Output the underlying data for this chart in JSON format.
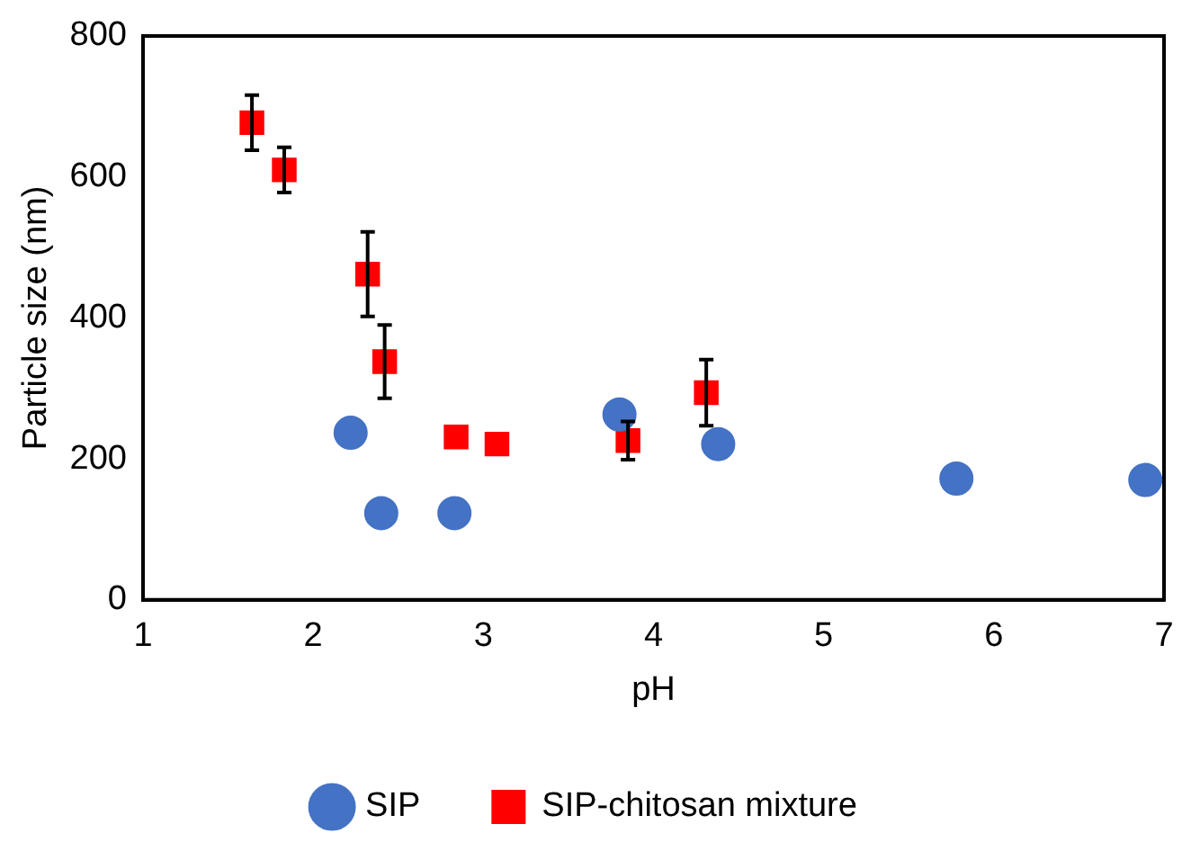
{
  "chart_data": {
    "type": "scatter",
    "xlabel": "pH",
    "ylabel": "Particle size (nm)",
    "xlim": [
      1,
      7
    ],
    "xticks": [
      1,
      2,
      3,
      4,
      5,
      6,
      7
    ],
    "ylim": [
      0,
      800
    ],
    "yticks": [
      0,
      200,
      400,
      600,
      800
    ],
    "grid": false,
    "legend": "bottom",
    "series": [
      {
        "name": "SIP",
        "color": "#4472c4",
        "marker": "circle",
        "x": [
          2.22,
          2.4,
          2.83,
          3.8,
          4.38,
          5.78,
          6.89
        ],
        "values": [
          237,
          123,
          123,
          263,
          221,
          172,
          170
        ]
      },
      {
        "name": "SIP-chitosan mixture",
        "color": "#ff0000",
        "marker": "square",
        "x": [
          1.64,
          1.83,
          2.32,
          2.42,
          2.84,
          3.08,
          3.85,
          4.31
        ],
        "values": [
          677,
          610,
          462,
          338,
          231,
          221,
          226,
          294
        ],
        "errors": [
          39,
          32,
          60,
          52,
          null,
          null,
          27,
          47
        ]
      }
    ]
  }
}
